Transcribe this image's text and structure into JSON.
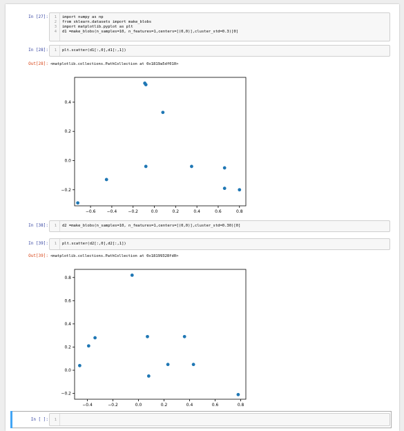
{
  "cells": [
    {
      "prompt": "In [27]:",
      "lines": [
        {
          "n": "1",
          "text": "import numpy as np"
        },
        {
          "n": "2",
          "text": "from sklearn.datasets import make_blobs"
        },
        {
          "n": "3",
          "text": "import matplotlib.pyplot as plt"
        },
        {
          "n": "4",
          "text": "d1 =make_blobs(n_samples=10, n_features=1,centers=[(0,0)],cluster_std=0.3)[0]"
        }
      ]
    },
    {
      "prompt": "In [28]:",
      "lines": [
        {
          "n": "1",
          "text": "plt.scatter(d1[:,0],d1[:,1])"
        }
      ],
      "out_prompt": "Out[28]:",
      "out_text": "<matplotlib.collections.PathCollection at 0x1819a5df010>"
    },
    {
      "prompt": "In [38]:",
      "lines": [
        {
          "n": "1",
          "text": "d2 =make_blobs(n_samples=10, n_features=1,centers=[(0,0)],cluster_std=0.30)[0]"
        }
      ]
    },
    {
      "prompt": "In [39]:",
      "lines": [
        {
          "n": "1",
          "text": "plt.scatter(d2[:,0],d2[:,1])"
        }
      ],
      "out_prompt": "Out[39]:",
      "out_text": "<matplotlib.collections.PathCollection at 0x18199328fd0>"
    },
    {
      "prompt": "In [ ]:",
      "lines": [
        {
          "n": "1",
          "text": ""
        }
      ]
    }
  ],
  "chart_data": [
    {
      "type": "scatter",
      "xlim": [
        -0.75,
        0.86
      ],
      "ylim": [
        -0.31,
        0.57
      ],
      "xticks": [
        -0.6,
        -0.4,
        -0.2,
        0.0,
        0.2,
        0.4,
        0.6,
        0.8
      ],
      "xtick_labels": [
        "−0.6",
        "−0.4",
        "−0.2",
        "0.0",
        "0.2",
        "0.4",
        "0.6",
        "0.8"
      ],
      "yticks": [
        -0.2,
        0.0,
        0.2,
        0.4
      ],
      "ytick_labels": [
        "−0.2",
        "0.0",
        "0.2",
        "0.4"
      ],
      "color": "#1f77b4",
      "x": [
        -0.72,
        -0.45,
        -0.09,
        -0.08,
        -0.08,
        0.08,
        0.35,
        0.66,
        0.66,
        0.8
      ],
      "y": [
        -0.29,
        -0.13,
        0.53,
        0.52,
        -0.04,
        0.33,
        -0.04,
        -0.05,
        -0.19,
        -0.2
      ]
    },
    {
      "type": "scatter",
      "xlim": [
        -0.5,
        0.84
      ],
      "ylim": [
        -0.25,
        0.87
      ],
      "xticks": [
        -0.4,
        -0.2,
        0.0,
        0.2,
        0.4,
        0.6,
        0.8
      ],
      "xtick_labels": [
        "−0.4",
        "−0.2",
        "0.0",
        "0.2",
        "0.4",
        "0.6",
        "0.8"
      ],
      "yticks": [
        -0.2,
        0.0,
        0.2,
        0.4,
        0.6,
        0.8
      ],
      "ytick_labels": [
        "−0.2",
        "0.0",
        "0.2",
        "0.4",
        "0.6",
        "0.8"
      ],
      "color": "#1f77b4",
      "x": [
        -0.46,
        -0.39,
        -0.34,
        -0.05,
        0.07,
        0.08,
        0.23,
        0.36,
        0.43,
        0.78
      ],
      "y": [
        0.04,
        0.21,
        0.28,
        0.82,
        0.29,
        -0.05,
        0.05,
        0.29,
        0.05,
        -0.21
      ]
    }
  ]
}
